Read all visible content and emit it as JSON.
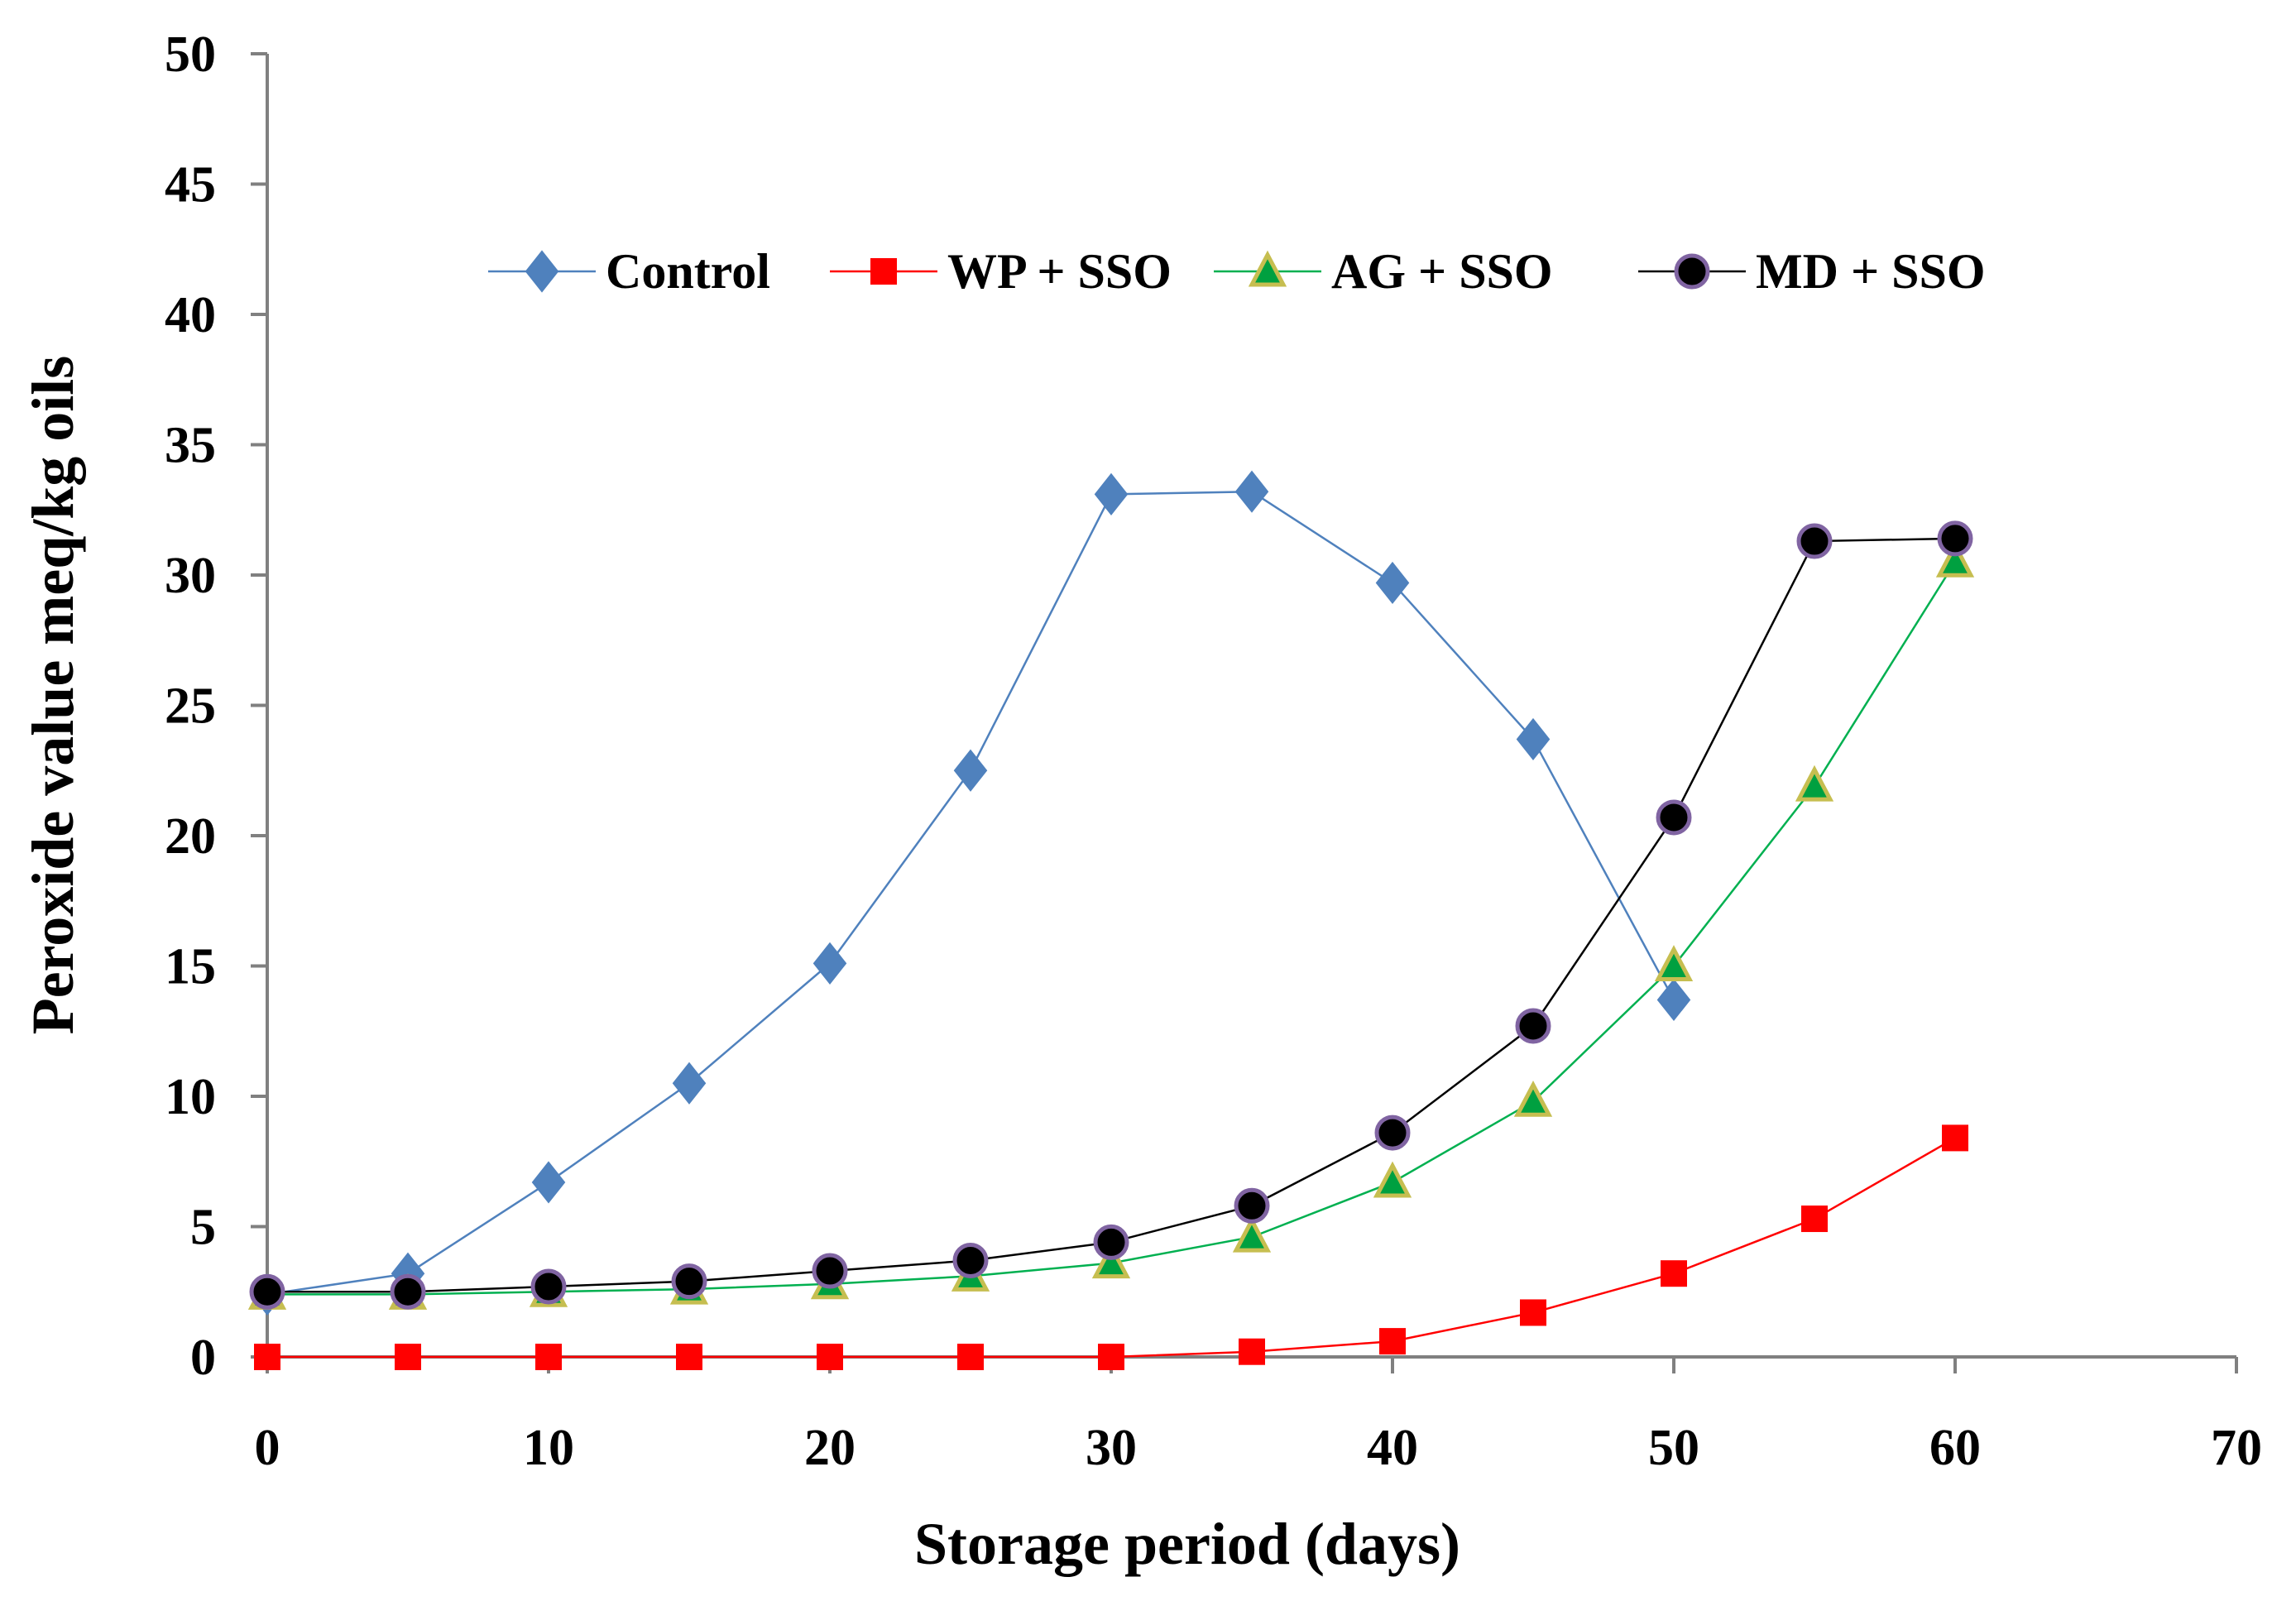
{
  "chart_data": {
    "type": "line",
    "title": "",
    "xlabel": "Storage period (days)",
    "ylabel": "Peroxide value meq/kg oils",
    "xlim": [
      0,
      70
    ],
    "ylim": [
      0,
      50
    ],
    "xticks": [
      0,
      10,
      20,
      30,
      40,
      50,
      60,
      70
    ],
    "yticks": [
      0,
      5,
      10,
      15,
      20,
      25,
      30,
      35,
      40,
      45,
      50
    ],
    "grid": false,
    "legend_position": "top",
    "series": [
      {
        "name": "Control",
        "color": "#4F81BD",
        "marker": "diamond",
        "x": [
          0,
          5,
          10,
          15,
          20,
          25,
          30,
          35,
          40,
          45,
          50
        ],
        "y": [
          2.4,
          3.2,
          6.7,
          10.5,
          15.1,
          22.5,
          33.1,
          33.2,
          29.7,
          23.7,
          13.7
        ]
      },
      {
        "name": "WP + SSO",
        "color": "#FF0000",
        "marker": "square",
        "x": [
          0,
          5,
          10,
          15,
          20,
          25,
          30,
          35,
          40,
          45,
          50,
          55,
          60
        ],
        "y": [
          0,
          0,
          0,
          0,
          0,
          0,
          0,
          0.2,
          0.6,
          1.7,
          3.2,
          5.3,
          8.4
        ]
      },
      {
        "name": "AG + SSO",
        "color": "#00B050",
        "marker": "triangle",
        "x": [
          0,
          5,
          10,
          15,
          20,
          25,
          30,
          35,
          40,
          45,
          50,
          55,
          60
        ],
        "y": [
          2.4,
          2.4,
          2.5,
          2.6,
          2.8,
          3.1,
          3.6,
          4.6,
          6.7,
          9.8,
          15.0,
          21.9,
          30.5
        ]
      },
      {
        "name": "MD + SSO",
        "color": "#000000",
        "marker": "circle",
        "x": [
          0,
          5,
          10,
          15,
          20,
          25,
          30,
          35,
          40,
          45,
          50,
          55,
          60
        ],
        "y": [
          2.5,
          2.5,
          2.7,
          2.9,
          3.3,
          3.7,
          4.4,
          5.8,
          8.6,
          12.7,
          20.7,
          31.3,
          31.4
        ]
      }
    ]
  }
}
